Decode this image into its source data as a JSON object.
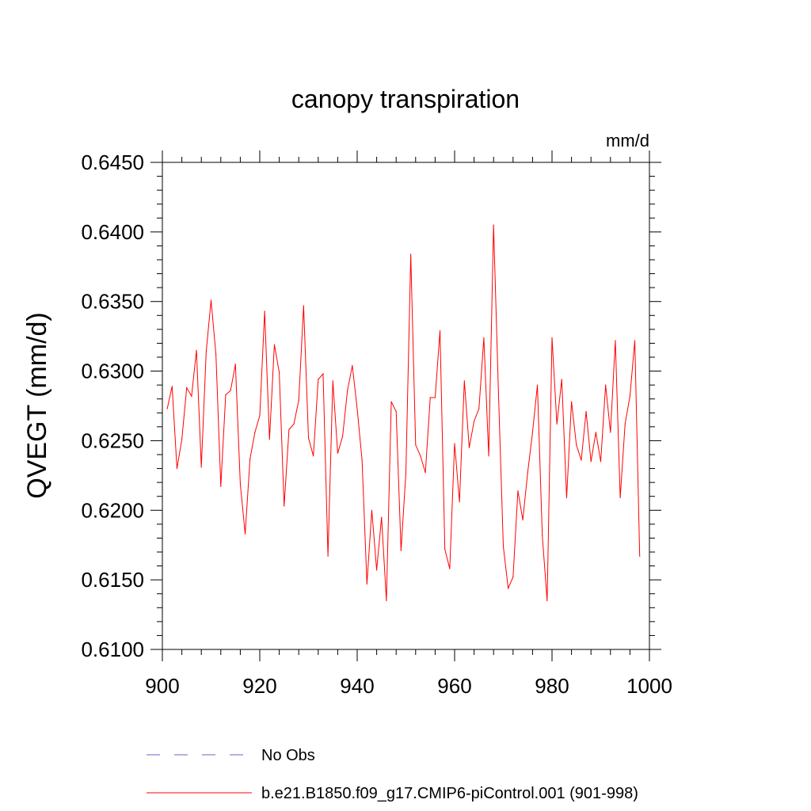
{
  "chart_data": {
    "type": "line",
    "title": "canopy transpiration",
    "units_label": "mm/d",
    "ylabel": "QVEGT  (mm/d)",
    "xlabel": "",
    "xlim": [
      900,
      1000
    ],
    "ylim": [
      0.61,
      0.645
    ],
    "x_ticks": [
      900,
      920,
      940,
      960,
      980,
      1000
    ],
    "x_tick_labels": [
      "900",
      "920",
      "940",
      "960",
      "980",
      "1000"
    ],
    "y_ticks": [
      0.61,
      0.615,
      0.62,
      0.625,
      0.63,
      0.635,
      0.64,
      0.645
    ],
    "y_tick_labels": [
      "0.6100",
      "0.6150",
      "0.6200",
      "0.6250",
      "0.6300",
      "0.6350",
      "0.6400",
      "0.6450"
    ],
    "grid": false,
    "legend_position": "bottom",
    "legend": [
      {
        "label": "No Obs",
        "color": "#6666cc",
        "style": "dashed"
      },
      {
        "label": "b.e21.B1850.f09_g17.CMIP6-piControl.001 (901-998)",
        "color": "#ff0000",
        "style": "solid"
      }
    ],
    "series": [
      {
        "name": "b.e21.B1850.f09_g17.CMIP6-piControl.001 (901-998)",
        "color": "#ff0000",
        "x": [
          901,
          902,
          903,
          904,
          905,
          906,
          907,
          908,
          909,
          910,
          911,
          912,
          913,
          914,
          915,
          916,
          917,
          918,
          919,
          920,
          921,
          922,
          923,
          924,
          925,
          926,
          927,
          928,
          929,
          930,
          931,
          932,
          933,
          934,
          935,
          936,
          937,
          938,
          939,
          940,
          941,
          942,
          943,
          944,
          945,
          946,
          947,
          948,
          949,
          950,
          951,
          952,
          953,
          954,
          955,
          956,
          957,
          958,
          959,
          960,
          961,
          962,
          963,
          964,
          965,
          966,
          967,
          968,
          969,
          970,
          971,
          972,
          973,
          974,
          975,
          976,
          977,
          978,
          979,
          980,
          981,
          982,
          983,
          984,
          985,
          986,
          987,
          988,
          989,
          990,
          991,
          992,
          993,
          994,
          995,
          996,
          997,
          998
        ],
        "values": [
          0.6273,
          0.6289,
          0.623,
          0.6251,
          0.6288,
          0.6282,
          0.6315,
          0.6231,
          0.6314,
          0.6351,
          0.6312,
          0.6217,
          0.6283,
          0.6286,
          0.6305,
          0.6219,
          0.6183,
          0.6237,
          0.6256,
          0.6268,
          0.6343,
          0.6251,
          0.6319,
          0.6299,
          0.6203,
          0.6258,
          0.6262,
          0.6279,
          0.6347,
          0.6252,
          0.6239,
          0.6294,
          0.6298,
          0.6167,
          0.6293,
          0.6241,
          0.6253,
          0.6286,
          0.6304,
          0.6273,
          0.6236,
          0.6147,
          0.62,
          0.6157,
          0.6195,
          0.6135,
          0.6278,
          0.6271,
          0.6171,
          0.6227,
          0.6384,
          0.6247,
          0.6239,
          0.6227,
          0.6281,
          0.6281,
          0.6329,
          0.6172,
          0.6158,
          0.6248,
          0.6206,
          0.6293,
          0.6245,
          0.6264,
          0.6273,
          0.6324,
          0.6239,
          0.6405,
          0.6285,
          0.6174,
          0.6144,
          0.6152,
          0.6214,
          0.6193,
          0.6227,
          0.6256,
          0.629,
          0.6182,
          0.6135,
          0.6324,
          0.6262,
          0.6294,
          0.6209,
          0.6278,
          0.6247,
          0.6236,
          0.6271,
          0.6235,
          0.6256,
          0.6235,
          0.629,
          0.6256,
          0.6322,
          0.6209,
          0.6262,
          0.6282,
          0.6322,
          0.6167
        ]
      }
    ]
  }
}
